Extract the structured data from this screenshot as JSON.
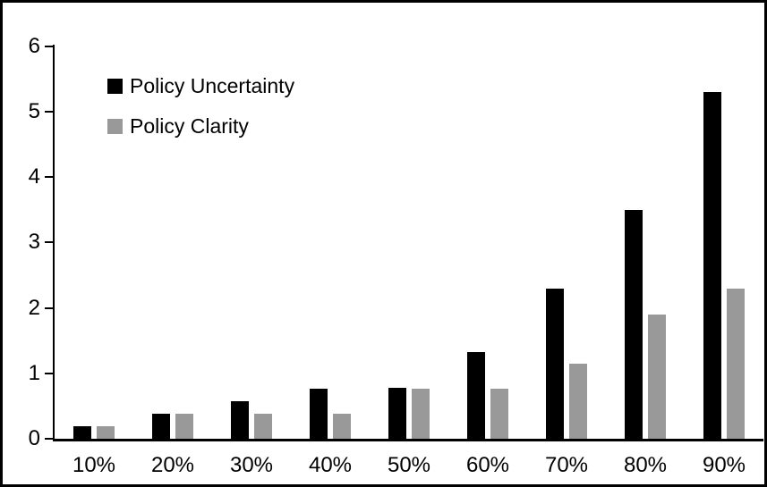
{
  "chart_data": {
    "type": "bar",
    "title": "",
    "xlabel": "",
    "ylabel": "",
    "categories": [
      "10%",
      "20%",
      "30%",
      "40%",
      "50%",
      "60%",
      "70%",
      "80%",
      "90%"
    ],
    "series": [
      {
        "name": "Policy Uncertainty",
        "color": "#000000",
        "values": [
          0.19,
          0.38,
          0.57,
          0.76,
          0.78,
          1.33,
          2.3,
          3.5,
          5.3
        ]
      },
      {
        "name": "Policy Clarity",
        "color": "#999999",
        "values": [
          0.19,
          0.38,
          0.38,
          0.38,
          0.77,
          0.77,
          1.15,
          1.9,
          2.3
        ]
      }
    ],
    "ylim": [
      0,
      6
    ],
    "yticks": [
      0,
      1,
      2,
      3,
      4,
      5,
      6
    ],
    "grid": false,
    "legend_position": "upper-left-inside",
    "frame_color": "#000000",
    "background_color": "#ffffff"
  }
}
